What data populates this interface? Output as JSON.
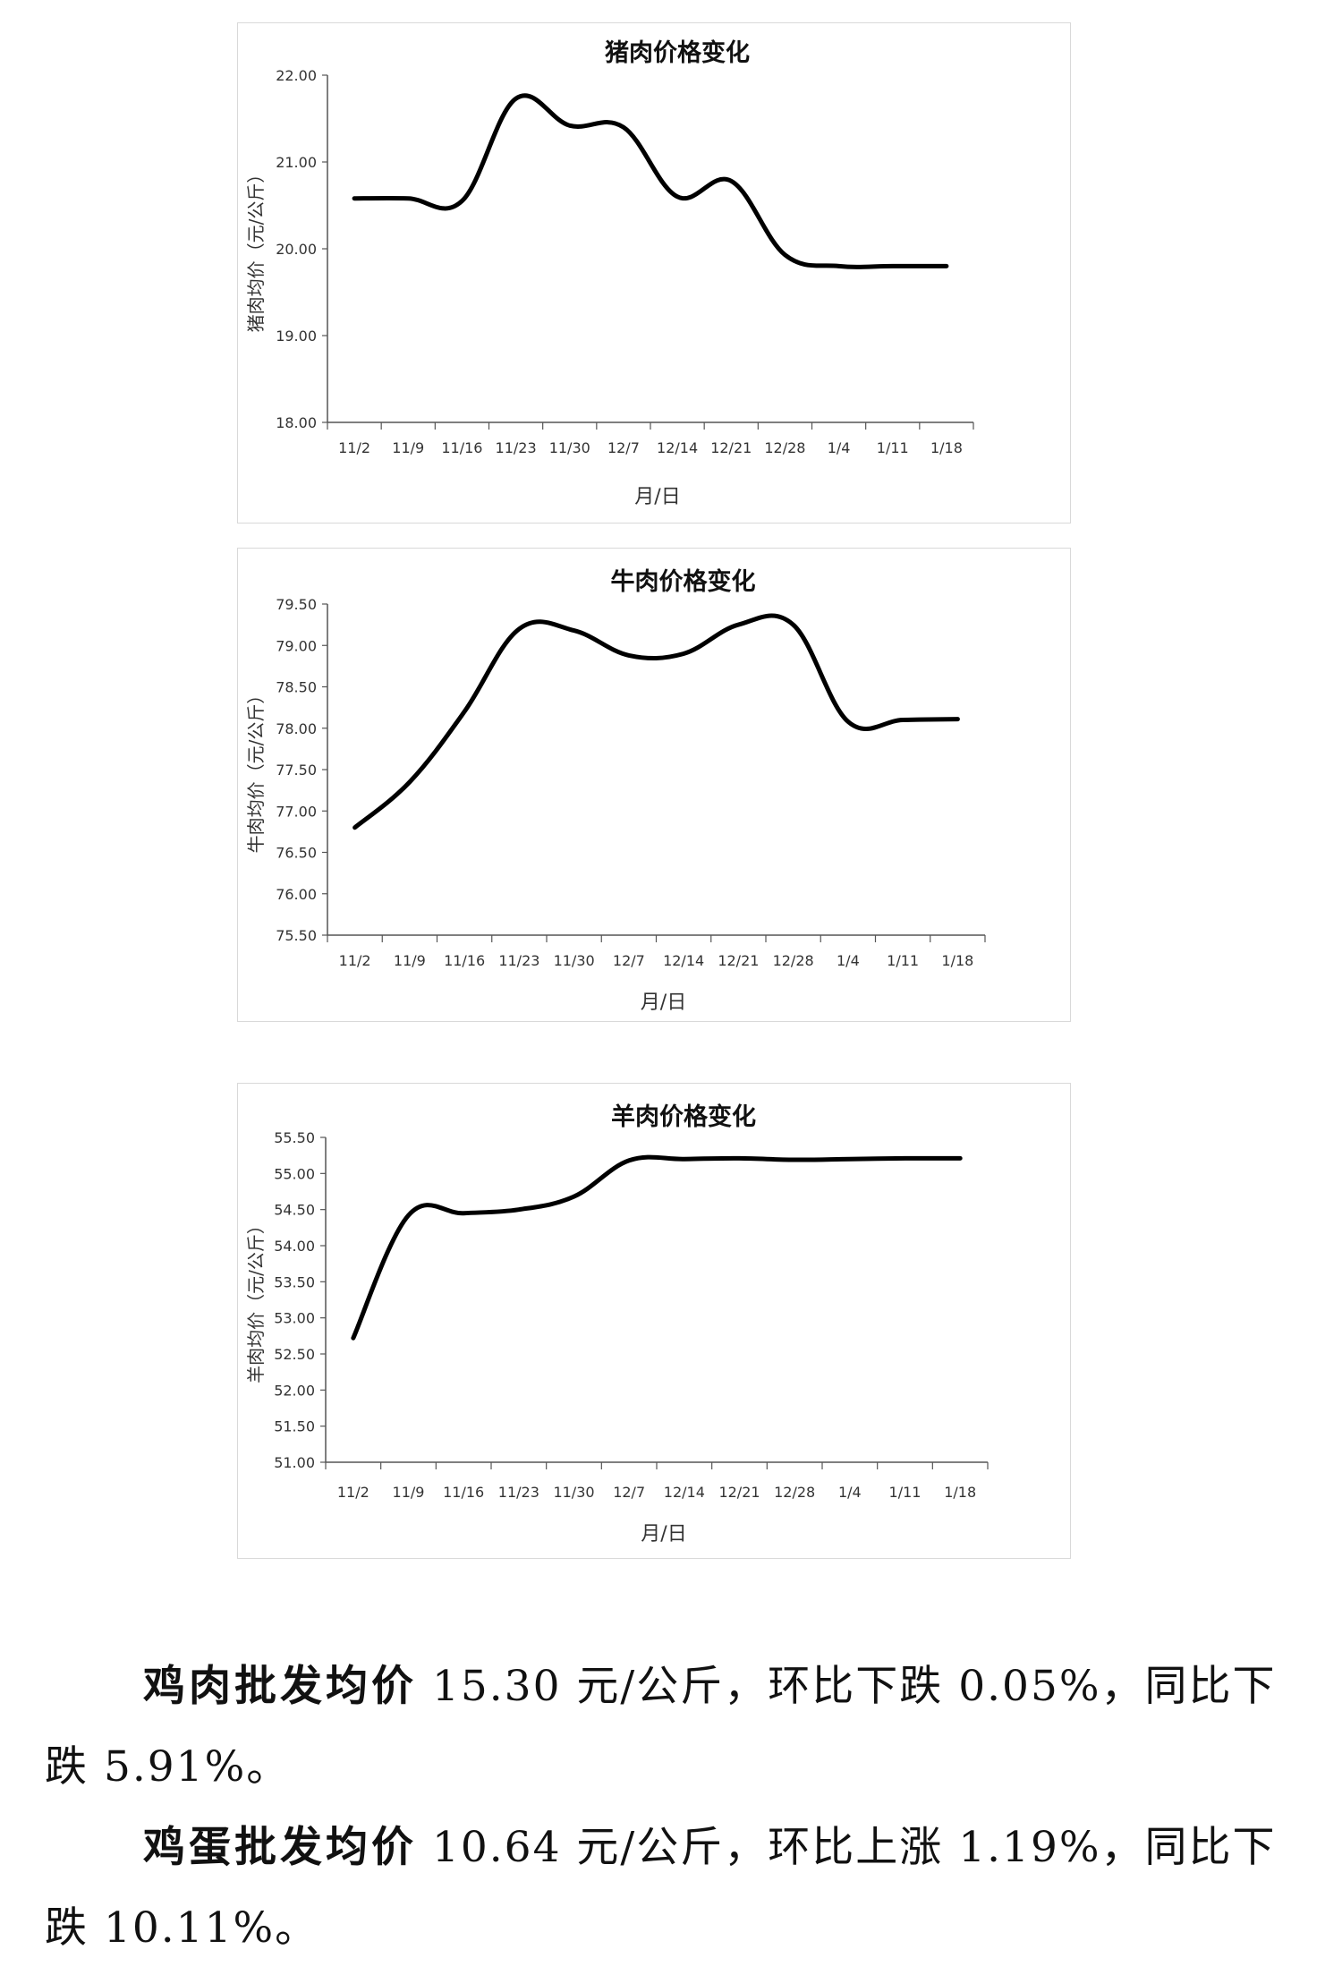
{
  "charts": [
    {
      "type": "line",
      "title": "猪肉价格变化",
      "xlabel": "月/日",
      "ylabel": "猪肉均价（元/公斤）",
      "categories": [
        "11/2",
        "11/9",
        "11/16",
        "11/23",
        "11/30",
        "12/7",
        "12/14",
        "12/21",
        "12/28",
        "1/4",
        "1/11",
        "1/18"
      ],
      "values": [
        20.58,
        20.58,
        20.55,
        21.73,
        21.42,
        21.4,
        20.6,
        20.78,
        19.93,
        19.8,
        19.8,
        19.8
      ],
      "ylim": [
        18.0,
        22.0
      ],
      "yticks": [
        "18.00",
        "19.00",
        "20.00",
        "21.00",
        "22.00"
      ],
      "grid": false,
      "legend": "none"
    },
    {
      "type": "line",
      "title": "牛肉价格变化",
      "xlabel": "月/日",
      "ylabel": "牛肉均价（元/公斤）",
      "categories": [
        "11/2",
        "11/9",
        "11/16",
        "11/23",
        "11/30",
        "12/7",
        "12/14",
        "12/21",
        "12/28",
        "1/4",
        "1/11",
        "1/18"
      ],
      "values": [
        76.8,
        77.35,
        78.2,
        79.2,
        79.18,
        78.88,
        78.9,
        79.25,
        79.25,
        78.08,
        78.1,
        78.11
      ],
      "ylim": [
        75.5,
        79.5
      ],
      "yticks": [
        "75.50",
        "76.00",
        "76.50",
        "77.00",
        "77.50",
        "78.00",
        "78.50",
        "79.00",
        "79.50"
      ],
      "grid": false,
      "legend": "none"
    },
    {
      "type": "line",
      "title": "羊肉价格变化",
      "xlabel": "月/日",
      "ylabel": "羊肉均价（元/公斤）",
      "categories": [
        "11/2",
        "11/9",
        "11/16",
        "11/23",
        "11/30",
        "12/7",
        "12/14",
        "12/21",
        "12/28",
        "1/4",
        "1/11",
        "1/18"
      ],
      "values": [
        52.72,
        54.42,
        54.45,
        54.5,
        54.68,
        55.18,
        55.2,
        55.21,
        55.19,
        55.2,
        55.21,
        55.21
      ],
      "ylim": [
        51.0,
        55.5
      ],
      "yticks": [
        "51.00",
        "51.50",
        "52.00",
        "52.50",
        "53.00",
        "53.50",
        "54.00",
        "54.50",
        "55.00",
        "55.50"
      ],
      "grid": false,
      "legend": "none"
    }
  ],
  "paragraphs": [
    {
      "lead": "鸡肉批发均价",
      "line1": " 15.30 元/公斤，环比下跌 0.05%，同比下",
      "line2": "跌 5.91%。"
    },
    {
      "lead": "鸡蛋批发均价",
      "line1": " 10.64 元/公斤，环比上涨 1.19%，同比下",
      "line2": "跌 10.11%。"
    }
  ]
}
